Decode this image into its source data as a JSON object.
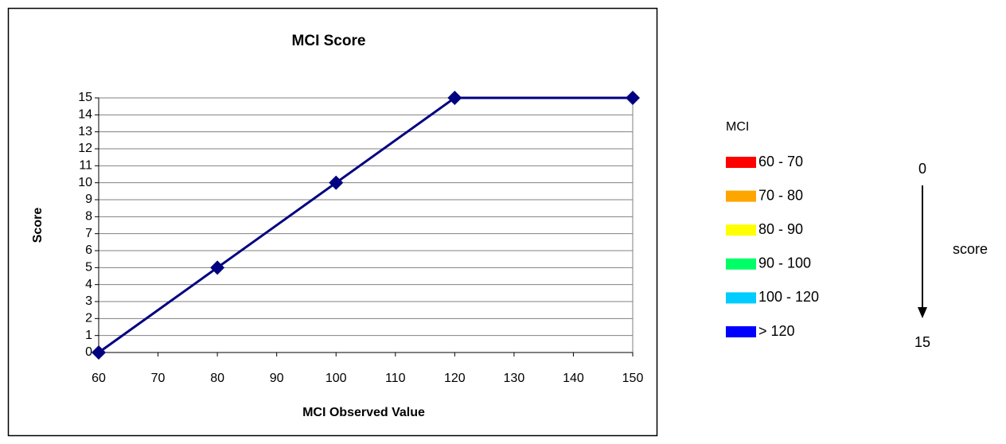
{
  "chart_data": {
    "type": "line",
    "title": "MCI Score",
    "x_label": "MCI Observed Value",
    "y_label": "Score",
    "x": [
      60,
      80,
      100,
      120,
      150
    ],
    "values": [
      0,
      5,
      10,
      15,
      15
    ],
    "color": "#000080",
    "xlim": [
      60,
      150
    ],
    "xticks": [
      60,
      70,
      80,
      90,
      100,
      110,
      120,
      130,
      140,
      150
    ],
    "ylim": [
      0,
      15
    ],
    "yticks": [
      0,
      1,
      2,
      3,
      4,
      5,
      6,
      7,
      8,
      9,
      10,
      11,
      12,
      13,
      14,
      15
    ],
    "grid": true
  },
  "legend": {
    "title": "MCI",
    "items": [
      {
        "label": "60 - 70",
        "color": "#ff0000"
      },
      {
        "label": "70 - 80",
        "color": "#ffa500"
      },
      {
        "label": "80 - 90",
        "color": "#ffff00"
      },
      {
        "label": "90 - 100",
        "color": "#00ff66"
      },
      {
        "label": "100 - 120",
        "color": "#00ccff"
      },
      {
        "label": "> 120",
        "color": "#0000ff"
      }
    ]
  },
  "scale": {
    "top": 0,
    "bottom": 15,
    "label": "score"
  }
}
